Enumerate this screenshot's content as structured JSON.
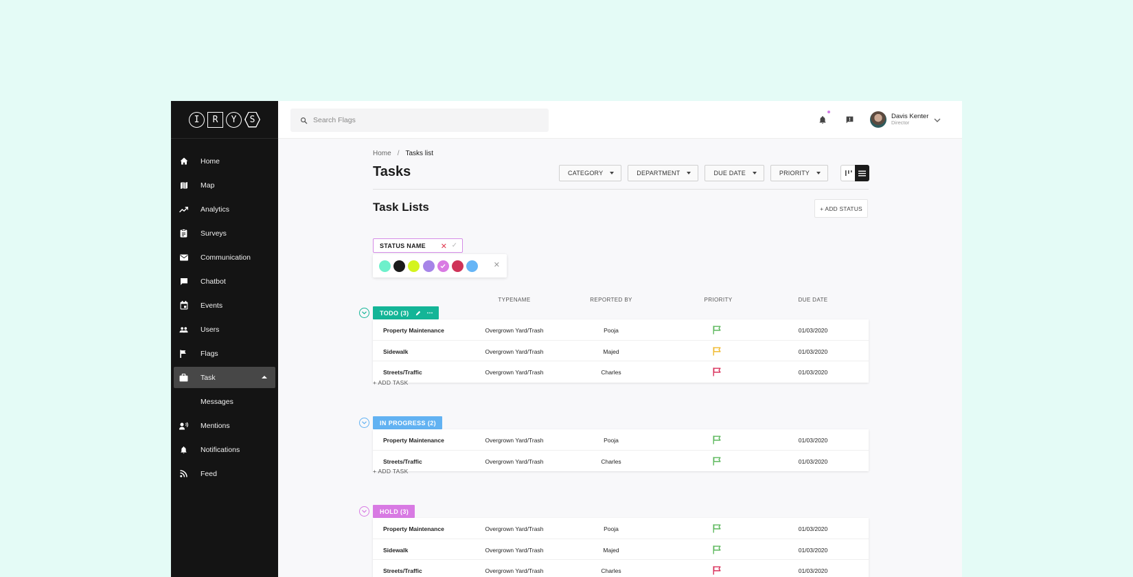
{
  "app": {
    "logo_letters": [
      "I",
      "R",
      "Y",
      "S"
    ]
  },
  "sidebar": {
    "items": [
      {
        "label": "Home",
        "icon": "home-icon"
      },
      {
        "label": "Map",
        "icon": "map-icon"
      },
      {
        "label": "Analytics",
        "icon": "trending-up-icon"
      },
      {
        "label": "Surveys",
        "icon": "clipboard-icon"
      },
      {
        "label": "Communication",
        "icon": "mail-icon"
      },
      {
        "label": "Chatbot",
        "icon": "chat-bubble-icon"
      },
      {
        "label": "Events",
        "icon": "calendar-icon"
      },
      {
        "label": "Users",
        "icon": "users-icon"
      },
      {
        "label": "Flags",
        "icon": "flag-icon"
      },
      {
        "label": "Task",
        "icon": "briefcase-icon",
        "active": true
      },
      {
        "label": "Messages",
        "icon": "",
        "sub": true
      },
      {
        "label": "Mentions",
        "icon": "voice-icon"
      },
      {
        "label": "Notifications",
        "icon": "bell-icon"
      },
      {
        "label": "Feed",
        "icon": "rss-icon"
      }
    ]
  },
  "header": {
    "search_placeholder": "Search Flags",
    "user_name": "Davis Kenter",
    "user_role": "Director"
  },
  "breadcrumb": {
    "home": "Home",
    "separator": "/",
    "current": "Tasks list"
  },
  "page": {
    "title": "Tasks",
    "filters": [
      "CATEGORY",
      "DEPARTMENT",
      "DUE DATE",
      "PRIORITY"
    ],
    "list_title": "Task Lists",
    "add_status_label": "+ ADD STATUS"
  },
  "status_editor": {
    "value": "STATUS NAME",
    "colors": [
      "#6ef0cb",
      "#1b1b1b",
      "#d4f41e",
      "#a684e8",
      "#d97ae3",
      "#cf3358",
      "#66b5f6"
    ],
    "selected_index": 4
  },
  "columns": {
    "typename": "TYPENAME",
    "reported_by": "REPORTED BY",
    "priority": "PRIORITY",
    "due_date": "DUE DATE"
  },
  "groups": [
    {
      "label": "TODO (3)",
      "color": "#14b597",
      "editable": true,
      "add_task_label": "+ ADD TASK",
      "rows": [
        {
          "name": "Property Maintenance",
          "type": "Overgrown Yard/Trash",
          "reporter": "Pooja",
          "priority_color": "#5cb85c",
          "due": "01/03/2020"
        },
        {
          "name": "Sidewalk",
          "type": "Overgrown Yard/Trash",
          "reporter": "Majed",
          "priority_color": "#f0b92e",
          "due": "01/03/2020"
        },
        {
          "name": "Streets/Traffic",
          "type": "Overgrown Yard/Trash",
          "reporter": "Charles",
          "priority_color": "#d9305b",
          "due": "01/03/2020"
        }
      ]
    },
    {
      "label": "IN PROGRESS (2)",
      "color": "#62b2f2",
      "editable": false,
      "add_task_label": "+ ADD TASK",
      "rows": [
        {
          "name": "Property Maintenance",
          "type": "Overgrown Yard/Trash",
          "reporter": "Pooja",
          "priority_color": "#5cb85c",
          "due": "01/03/2020"
        },
        {
          "name": "Streets/Traffic",
          "type": "Overgrown Yard/Trash",
          "reporter": "Charles",
          "priority_color": "#5cb85c",
          "due": "01/03/2020"
        }
      ]
    },
    {
      "label": "HOLD (3)",
      "color": "#d87ae3",
      "editable": false,
      "add_task_label": "",
      "rows": [
        {
          "name": "Property Maintenance",
          "type": "Overgrown Yard/Trash",
          "reporter": "Pooja",
          "priority_color": "#5cb85c",
          "due": "01/03/2020"
        },
        {
          "name": "Sidewalk",
          "type": "Overgrown Yard/Trash",
          "reporter": "Majed",
          "priority_color": "#5cb85c",
          "due": "01/03/2020"
        },
        {
          "name": "Streets/Traffic",
          "type": "Overgrown Yard/Trash",
          "reporter": "Charles",
          "priority_color": "#d9305b",
          "due": "01/03/2020"
        }
      ]
    }
  ]
}
